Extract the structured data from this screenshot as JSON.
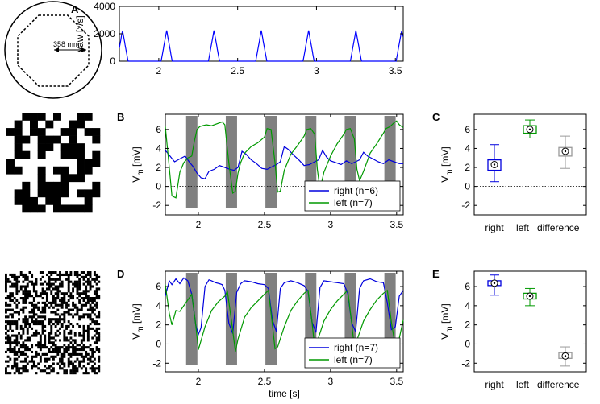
{
  "arena": {
    "diameter_label": "358 mm"
  },
  "chart_data": [
    {
      "id": "A",
      "type": "line",
      "panel_label": "A",
      "ylabel": "yaw [°/s]",
      "xlim": [
        1.75,
        3.55
      ],
      "ylim": [
        0,
        4000
      ],
      "xticks": [
        "2",
        "2.5",
        "3",
        "3.5"
      ],
      "yticks": [
        "0",
        "2000",
        "4000"
      ],
      "series": [
        {
          "name": "yaw",
          "color": "#0000ff",
          "peaks": [
            1.77,
            2.05,
            2.35,
            2.65,
            2.95,
            3.25,
            3.54
          ],
          "peak_value": 2250,
          "peak_width": 0.035
        }
      ]
    },
    {
      "id": "B",
      "type": "line",
      "panel_label": "B",
      "ylabel": "Vm [mV]",
      "xlim": [
        1.75,
        3.55
      ],
      "ylim": [
        -3,
        7.6
      ],
      "xticks": [
        "2",
        "2.5",
        "3",
        "3.5"
      ],
      "yticks": [
        "-2",
        "0",
        "2",
        "4",
        "6"
      ],
      "stim_bars": [
        1.95,
        2.25,
        2.55,
        2.85,
        3.15,
        3.45
      ],
      "legend": [
        "right (n=6)",
        "left (n=7)"
      ],
      "series": [
        {
          "name": "right (n=6)",
          "color": "#0000dd",
          "x": [
            1.75,
            1.78,
            1.82,
            1.86,
            1.9,
            1.93,
            1.96,
            1.99,
            2.02,
            2.05,
            2.08,
            2.12,
            2.16,
            2.2,
            2.24,
            2.27,
            2.3,
            2.33,
            2.36,
            2.4,
            2.44,
            2.48,
            2.52,
            2.56,
            2.59,
            2.62,
            2.65,
            2.68,
            2.72,
            2.76,
            2.8,
            2.84,
            2.88,
            2.91,
            2.94,
            2.97,
            3.0,
            3.04,
            3.08,
            3.12,
            3.16,
            3.19,
            3.22,
            3.25,
            3.28,
            3.32,
            3.36,
            3.4,
            3.44,
            3.48,
            3.52,
            3.55
          ],
          "y": [
            3.8,
            3.3,
            2.6,
            2.9,
            3.2,
            2.6,
            2.1,
            1.4,
            0.9,
            0.8,
            1.6,
            1.8,
            2.2,
            2.0,
            1.8,
            1.7,
            2.0,
            3.7,
            3.4,
            2.8,
            2.4,
            1.9,
            1.8,
            2.1,
            2.3,
            2.6,
            4.2,
            3.9,
            3.3,
            2.8,
            2.2,
            2.3,
            2.6,
            2.8,
            3.8,
            3.1,
            2.7,
            2.5,
            2.3,
            2.7,
            2.4,
            2.6,
            2.8,
            3.6,
            3.2,
            2.9,
            2.6,
            2.4,
            2.8,
            2.6,
            2.4,
            2.4
          ]
        },
        {
          "name": "left (n=7)",
          "color": "#009900",
          "x": [
            1.75,
            1.78,
            1.8,
            1.83,
            1.86,
            1.89,
            1.92,
            1.95,
            1.97,
            1.99,
            2.01,
            2.03,
            2.06,
            2.1,
            2.14,
            2.18,
            2.2,
            2.23,
            2.26,
            2.28,
            2.3,
            2.32,
            2.35,
            2.4,
            2.45,
            2.5,
            2.52,
            2.55,
            2.58,
            2.6,
            2.62,
            2.65,
            2.7,
            2.75,
            2.8,
            2.82,
            2.85,
            2.88,
            2.9,
            2.92,
            2.95,
            3.0,
            3.05,
            3.1,
            3.12,
            3.15,
            3.18,
            3.2,
            3.22,
            3.25,
            3.3,
            3.35,
            3.4,
            3.42,
            3.45,
            3.48,
            3.5,
            3.52,
            3.55
          ],
          "y": [
            6.3,
            2.0,
            -1.0,
            -1.2,
            1.5,
            2.5,
            3.0,
            3.2,
            4.8,
            6.0,
            6.3,
            6.4,
            6.5,
            6.4,
            6.6,
            6.8,
            6.5,
            2.5,
            -0.7,
            -0.5,
            1.4,
            2.5,
            3.5,
            4.2,
            4.6,
            5.2,
            6.1,
            6.0,
            2.5,
            -0.6,
            -0.5,
            1.7,
            3.4,
            4.3,
            5.3,
            6.0,
            6.1,
            5.5,
            1.8,
            -0.3,
            1.5,
            3.2,
            4.5,
            5.5,
            6.0,
            6.1,
            5.0,
            1.8,
            0.6,
            1.6,
            3.5,
            4.5,
            5.6,
            6.1,
            6.3,
            6.7,
            6.9,
            6.5,
            6.2
          ]
        }
      ]
    },
    {
      "id": "C",
      "type": "box",
      "panel_label": "C",
      "ylabel": "Vm [mV]",
      "ylim": [
        -3,
        7.6
      ],
      "yticks": [
        "-2",
        "0",
        "2",
        "4",
        "6"
      ],
      "categories": [
        "right",
        "left",
        "difference"
      ],
      "boxes": [
        {
          "name": "right",
          "color": "#0000dd",
          "min": 0.5,
          "q1": 1.7,
          "median": 2.3,
          "q3": 2.8,
          "max": 4.4
        },
        {
          "name": "left",
          "color": "#009900",
          "min": 5.1,
          "q1": 5.6,
          "median": 6.0,
          "q3": 6.4,
          "max": 7.0
        },
        {
          "name": "difference",
          "color": "#999999",
          "min": 1.9,
          "q1": 3.2,
          "median": 3.7,
          "q3": 4.1,
          "max": 5.3
        }
      ]
    },
    {
      "id": "D",
      "type": "line",
      "panel_label": "D",
      "ylabel": "Vm [mV]",
      "xlabel": "time [s]",
      "xlim": [
        1.75,
        3.55
      ],
      "ylim": [
        -2.9,
        7.6
      ],
      "xticks": [
        "2",
        "2.5",
        "3",
        "3.5"
      ],
      "yticks": [
        "-2",
        "0",
        "2",
        "4",
        "6"
      ],
      "stim_bars": [
        1.95,
        2.25,
        2.55,
        2.85,
        3.15,
        3.45
      ],
      "legend": [
        "right (n=7)",
        "left (n=7)"
      ],
      "series": [
        {
          "name": "right (n=7)",
          "color": "#0000dd",
          "x": [
            1.75,
            1.78,
            1.8,
            1.83,
            1.86,
            1.89,
            1.92,
            1.95,
            1.98,
            2.0,
            2.02,
            2.05,
            2.08,
            2.1,
            2.13,
            2.16,
            2.18,
            2.2,
            2.23,
            2.26,
            2.29,
            2.32,
            2.35,
            2.4,
            2.45,
            2.5,
            2.53,
            2.56,
            2.59,
            2.62,
            2.65,
            2.7,
            2.75,
            2.8,
            2.83,
            2.86,
            2.89,
            2.92,
            2.95,
            3.0,
            3.05,
            3.1,
            3.13,
            3.16,
            3.19,
            3.22,
            3.25,
            3.3,
            3.35,
            3.4,
            3.43,
            3.46,
            3.49,
            3.52,
            3.55
          ],
          "y": [
            5.0,
            6.6,
            6.2,
            6.8,
            6.3,
            6.9,
            6.6,
            5.2,
            2.0,
            1.0,
            1.7,
            6.0,
            6.7,
            6.6,
            6.4,
            6.3,
            6.2,
            5.6,
            2.2,
            1.1,
            5.4,
            6.3,
            6.6,
            6.5,
            6.3,
            6.2,
            5.8,
            2.5,
            1.3,
            5.8,
            6.4,
            6.6,
            6.4,
            6.1,
            5.5,
            2.3,
            1.2,
            5.9,
            6.6,
            6.5,
            6.4,
            6.3,
            5.3,
            2.2,
            1.3,
            5.8,
            6.6,
            6.8,
            6.5,
            6.4,
            4.3,
            1.5,
            1.8,
            5.0,
            5.6
          ]
        },
        {
          "name": "left (n=7)",
          "color": "#009900",
          "x": [
            1.75,
            1.78,
            1.8,
            1.83,
            1.86,
            1.89,
            1.92,
            1.95,
            1.98,
            2.0,
            2.05,
            2.1,
            2.15,
            2.2,
            2.22,
            2.25,
            2.28,
            2.3,
            2.35,
            2.4,
            2.45,
            2.5,
            2.53,
            2.56,
            2.58,
            2.6,
            2.65,
            2.7,
            2.75,
            2.8,
            2.83,
            2.86,
            2.88,
            2.9,
            2.95,
            3.0,
            3.05,
            3.1,
            3.13,
            3.16,
            3.18,
            3.2,
            3.25,
            3.3,
            3.35,
            3.4,
            3.43,
            3.46,
            3.49,
            3.52,
            3.55
          ],
          "y": [
            6.2,
            3.2,
            2.0,
            3.5,
            3.4,
            4.0,
            4.6,
            5.2,
            2.0,
            -0.6,
            1.8,
            3.5,
            4.4,
            5.0,
            5.5,
            2.5,
            -0.8,
            0.5,
            2.8,
            3.8,
            4.5,
            5.2,
            5.6,
            2.0,
            -0.5,
            -0.3,
            1.8,
            3.5,
            4.5,
            5.3,
            5.6,
            2.3,
            -0.4,
            0.3,
            2.4,
            3.6,
            4.5,
            5.2,
            5.6,
            2.2,
            -0.4,
            0.4,
            2.4,
            3.6,
            4.6,
            5.3,
            5.6,
            2.3,
            -0.3,
            0.6,
            2.5
          ]
        }
      ]
    },
    {
      "id": "E",
      "type": "box",
      "panel_label": "E",
      "ylabel": "Vm [mV]",
      "ylim": [
        -2.9,
        7.6
      ],
      "yticks": [
        "-2",
        "0",
        "2",
        "4",
        "6"
      ],
      "categories": [
        "right",
        "left",
        "difference"
      ],
      "boxes": [
        {
          "name": "right",
          "color": "#0000dd",
          "min": 5.1,
          "q1": 6.1,
          "median": 6.35,
          "q3": 6.6,
          "max": 7.2
        },
        {
          "name": "left",
          "color": "#009900",
          "min": 4.0,
          "q1": 4.7,
          "median": 5.0,
          "q3": 5.3,
          "max": 5.8
        },
        {
          "name": "difference",
          "color": "#999999",
          "min": -2.3,
          "q1": -1.5,
          "median": -1.25,
          "q3": -0.9,
          "max": -0.3
        }
      ]
    }
  ]
}
